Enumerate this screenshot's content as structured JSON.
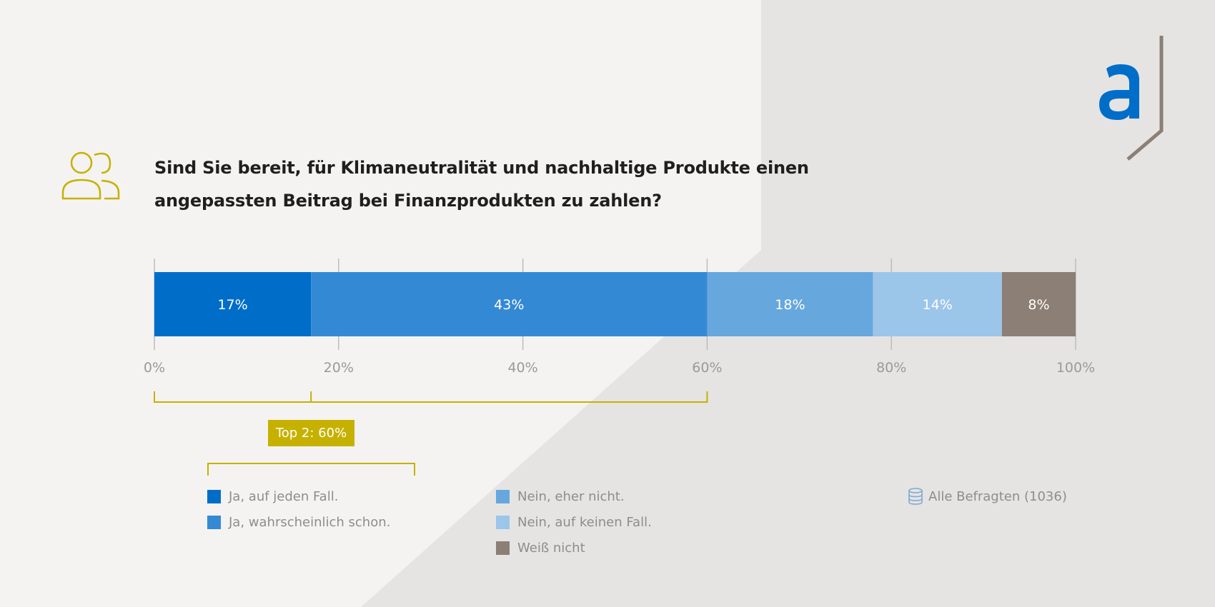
{
  "chart_data": {
    "type": "bar",
    "orientation": "horizontal-stacked",
    "title": "Sind Sie bereit, für Klimaneutralität und nachhaltige Produkte einen angepassten Beitrag bei Finanzprodukten zu zahlen?",
    "title_lines": [
      "Sind Sie bereit, für Klimaneutralität und nachhaltige Produkte einen",
      "angepassten Beitrag bei Finanzprodukten zu zahlen?"
    ],
    "xlim": [
      0,
      100
    ],
    "ticks": [
      0,
      20,
      40,
      60,
      80,
      100
    ],
    "tick_labels": [
      "0%",
      "20%",
      "40%",
      "60%",
      "80%",
      "100%"
    ],
    "series": [
      {
        "name": "Ja, auf jeden Fall.",
        "value": 17,
        "label": "17%",
        "color": "#006ec8"
      },
      {
        "name": "Ja, wahrscheinlich schon.",
        "value": 43,
        "label": "43%",
        "color": "#3489d5"
      },
      {
        "name": "Nein, eher nicht.",
        "value": 18,
        "label": "18%",
        "color": "#66a7de"
      },
      {
        "name": "Nein, auf keinen Fall.",
        "value": 14,
        "label": "14%",
        "color": "#9cc5ea"
      },
      {
        "name": "Weiß nicht",
        "value": 8,
        "label": "8%",
        "color": "#8b7f76"
      }
    ],
    "top2": {
      "label": "Top 2: 60%",
      "value": 60,
      "color": "#c6b100"
    },
    "base": "Alle Befragten (1036)",
    "legend_position": "bottom",
    "grid": false
  },
  "icons": {
    "audience": "people-icon",
    "base": "database-icon",
    "brand": "brand-logo"
  },
  "colors": {
    "background": "#f4f3f1",
    "background_shade": "#e5e4e2",
    "accent": "#c6b100",
    "brand_blue": "#006ec8",
    "brand_stroke": "#8b7f76",
    "tick": "#9a9a9a"
  }
}
